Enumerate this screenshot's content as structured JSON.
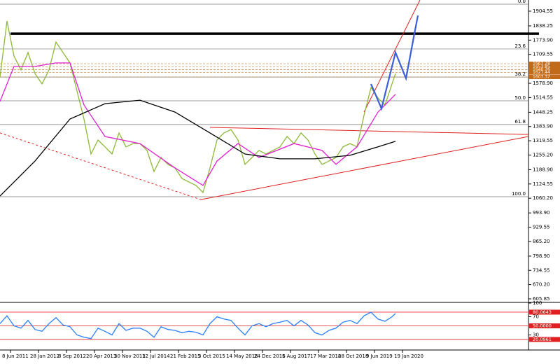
{
  "chart_data": [
    {
      "type": "line",
      "xlim": [
        -0.375,
        18.5
      ],
      "xticks": [
        {
          "value": 0,
          "label": "8 Jun 2011"
        },
        {
          "value": 1,
          "label": "28 Jan 2012"
        },
        {
          "value": 2,
          "label": "8 Sep 2012"
        },
        {
          "value": 3,
          "label": "20 Apr 2013"
        },
        {
          "value": 4,
          "label": "30 Nov 2013"
        },
        {
          "value": 5,
          "label": "12 Jul 2014"
        },
        {
          "value": 6,
          "label": "21 Feb 2015"
        },
        {
          "value": 7,
          "label": "3 Oct 2015"
        },
        {
          "value": 8,
          "label": "14 May 2016"
        },
        {
          "value": 9,
          "label": "24 Dec 2016"
        },
        {
          "value": 10,
          "label": "5 Aug 2017"
        },
        {
          "value": 11,
          "label": "17 Mar 2018"
        },
        {
          "value": 12,
          "label": "28 Oct 2018"
        },
        {
          "value": 13,
          "label": "9 Jun 2019"
        },
        {
          "value": 14,
          "label": "19 Jan 2020"
        }
      ],
      "ylim": [
        590,
        1955
      ],
      "yticks": [
        1904.55,
        1838.25,
        {
          "value": 1773.9,
          "label": "1773.90"
        },
        1709.55,
        {
          "value": 1578.9,
          "label": "1578.90"
        },
        1514.55,
        1448.25,
        {
          "value": 1383.9,
          "label": "1383.90"
        },
        1319.55,
        {
          "value": 1255.2,
          "label": "1255.20"
        },
        {
          "value": 1188.9,
          "label": "1188.90"
        },
        1124.55,
        {
          "value": 1060.2,
          "label": "1060.20"
        },
        {
          "value": 993.9,
          "label": "993.90"
        },
        929.55,
        {
          "value": 865.2,
          "label": "865.20"
        },
        {
          "value": 798.9,
          "label": "798.90"
        },
        734.55,
        {
          "value": 670.2,
          "label": "670.20"
        },
        605.85
      ],
      "series": [
        {
          "color": "#8db83a",
          "x": [
            -0.375,
            -0.125,
            0.125,
            0.375,
            0.625,
            0.875,
            1.125,
            1.375,
            1.625,
            1.875,
            2.125,
            2.375,
            2.625,
            2.875,
            3.125,
            3.375,
            3.625,
            3.875,
            4.125,
            4.375,
            4.625,
            4.875,
            5.125,
            5.375,
            5.625,
            5.875,
            6.125,
            6.375,
            6.625,
            6.875,
            7.125,
            7.375,
            7.625,
            7.875,
            8.125,
            8.375,
            8.625,
            8.875,
            9.125,
            9.375,
            9.625,
            9.875,
            10.125,
            10.375,
            10.625,
            10.875,
            11.125,
            11.375,
            11.625,
            11.875,
            12.125,
            12.375,
            12.625,
            12.875,
            13.125,
            13.375,
            13.625,
            13.75
          ],
          "values": [
            1607,
            1860,
            1702,
            1639,
            1718,
            1623,
            1576,
            1639,
            1765,
            1718,
            1671,
            1544,
            1418,
            1260,
            1323,
            1292,
            1260,
            1355,
            1292,
            1307,
            1307,
            1276,
            1181,
            1244,
            1213,
            1197,
            1149,
            1133,
            1118,
            1086,
            1197,
            1323,
            1355,
            1370,
            1323,
            1213,
            1244,
            1276,
            1260,
            1276,
            1292,
            1339,
            1307,
            1355,
            1323,
            1260,
            1213,
            1228,
            1244,
            1292,
            1307,
            1292,
            1434,
            1560,
            1513,
            1481,
            1576,
            1623
          ]
        },
        {
          "color": "#e020d0",
          "x": [
            -0.375,
            0.125,
            0.875,
            1.625,
            2.125,
            2.625,
            3.375,
            4.625,
            5.875,
            6.875,
            7.375,
            8.125,
            8.875,
            10.125,
            11.125,
            11.625,
            12.375,
            13.125,
            13.75
          ],
          "values": [
            1497,
            1655,
            1655,
            1671,
            1671,
            1481,
            1339,
            1307,
            1197,
            1118,
            1228,
            1307,
            1244,
            1307,
            1276,
            1213,
            1292,
            1449,
            1529
          ]
        },
        {
          "color": "#000000",
          "x": [
            -0.375,
            0.875,
            2.125,
            3.375,
            4.625,
            5.875,
            7.125,
            8.375,
            9.625,
            10.875,
            12.125,
            13.125,
            13.75
          ],
          "values": [
            1070,
            1228,
            1418,
            1487,
            1503,
            1449,
            1355,
            1260,
            1238,
            1238,
            1254,
            1292,
            1317
          ]
        },
        {
          "color": "#3a5fd9",
          "x": [
            12.875,
            13.25,
            13.75,
            14.125,
            14.425,
            14.55
          ],
          "values": [
            1576,
            1465,
            1718,
            1601,
            1803,
            1885
          ]
        }
      ],
      "fib_levels": [
        {
          "label": "0.0",
          "price": 1936
        },
        {
          "label": "23.6",
          "price": 1734
        },
        {
          "label": "38.2",
          "price": 1607
        },
        {
          "label": "50.0",
          "price": 1500
        },
        {
          "label": "61.8",
          "price": 1393
        },
        {
          "label": "100.0",
          "price": 1067
        }
      ],
      "price_labels": [
        1667.28,
        1653.85,
        1640.26,
        1627.44,
        1607.37
      ],
      "resistance": 1803,
      "trendlines": [
        {
          "color": "#e02020",
          "dashed": false,
          "x": [
            6.8,
            18.5
          ],
          "values": [
            1054,
            1339
          ]
        },
        {
          "color": "#e02020",
          "dashed": false,
          "x": [
            12.625,
            14.625
          ],
          "values": [
            1449,
            1955
          ]
        },
        {
          "color": "#e02020",
          "dashed": true,
          "x": [
            -0.375,
            6.8
          ],
          "values": [
            1355,
            1054
          ]
        },
        {
          "color": "#e02020",
          "dashed": false,
          "x": [
            7.125,
            18.5
          ],
          "values": [
            1380,
            1348
          ]
        }
      ]
    },
    {
      "type": "line",
      "xlim": [
        -0.375,
        18.5
      ],
      "ylim": [
        0,
        100
      ],
      "yticks": [
        100,
        70,
        30
      ],
      "levels": [
        80.0643,
        {
          "value": 50,
          "label": "50.0000"
        },
        20.0961
      ],
      "series": [
        {
          "color": "#2a7fff",
          "x": [
            -0.375,
            -0.125,
            0.125,
            0.375,
            0.625,
            0.875,
            1.125,
            1.375,
            1.625,
            1.875,
            2.125,
            2.375,
            2.625,
            2.875,
            3.125,
            3.375,
            3.625,
            3.875,
            4.125,
            4.375,
            4.625,
            4.875,
            5.125,
            5.375,
            5.625,
            5.875,
            6.125,
            6.375,
            6.625,
            6.875,
            7.125,
            7.375,
            7.625,
            7.875,
            8.125,
            8.375,
            8.625,
            8.875,
            9.125,
            9.375,
            9.625,
            9.875,
            10.125,
            10.375,
            10.625,
            10.875,
            11.125,
            11.375,
            11.625,
            11.875,
            12.125,
            12.375,
            12.625,
            12.875,
            13.125,
            13.375,
            13.625,
            13.75
          ],
          "values": [
            55,
            72,
            50,
            45,
            62,
            42,
            38,
            55,
            68,
            52,
            48,
            30,
            25,
            22,
            45,
            38,
            30,
            55,
            40,
            45,
            45,
            38,
            25,
            48,
            42,
            40,
            35,
            38,
            36,
            30,
            55,
            70,
            65,
            62,
            45,
            30,
            50,
            55,
            48,
            55,
            58,
            62,
            50,
            62,
            52,
            35,
            30,
            40,
            45,
            58,
            62,
            55,
            72,
            80,
            65,
            60,
            70,
            77
          ]
        }
      ]
    }
  ]
}
